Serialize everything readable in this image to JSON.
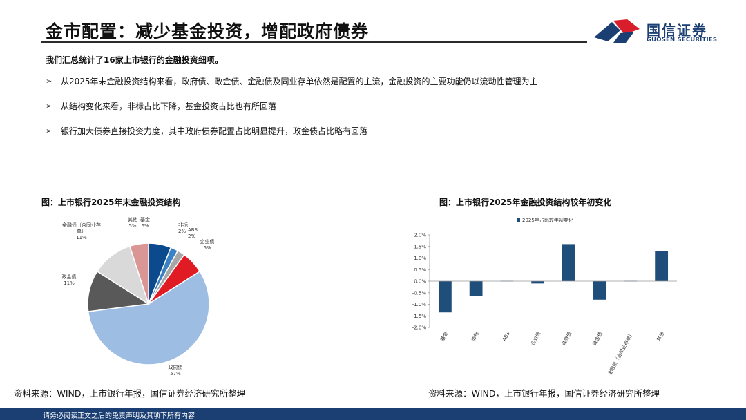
{
  "header": {
    "title": "金市配置：减少基金投资，增配政府债券",
    "logo_name": "国信证券",
    "logo_sub": "GUOSEN SECURITIES"
  },
  "intro": "我们汇总统计了16家上市银行的金融投资细项。",
  "bullets": [
    {
      "mark": "➢",
      "text": "从2025年末金融投资结构来看，政府债、政金债、金融债及同业存单依然是配置的主流，金融投资的主要功能仍以流动性管理为主"
    },
    {
      "mark": "➢",
      "text": "从结构变化来看，非标占比下降，基金投资占比也有所回落"
    },
    {
      "mark": "➢",
      "text": "银行加大债券直接投资力度，其中政府债券配置占比明显提升，政金债占比略有回落"
    }
  ],
  "colors": {
    "brand_blue": "#1b3f73",
    "brand_red": "#d81e2a",
    "bar": "#1f4e7a"
  },
  "chart_data": [
    {
      "type": "pie",
      "caption": "图：上市银行2025年末金融投资结构",
      "slices": [
        {
          "label": "基金",
          "value": 6,
          "display": "6%",
          "color": "#0b4a8c"
        },
        {
          "label": "非标",
          "value": 2,
          "display": "2%",
          "color": "#3a82c4"
        },
        {
          "label": "ABS",
          "value": 2,
          "display": "2%",
          "color": "#a7a7a7"
        },
        {
          "label": "企业债",
          "value": 6,
          "display": "6%",
          "color": "#e01b24"
        },
        {
          "label": "政府债",
          "value": 57,
          "display": "57%",
          "color": "#9dbde3"
        },
        {
          "label": "政金债",
          "value": 11,
          "display": "11%",
          "color": "#595959"
        },
        {
          "label": "金融债（含同业存单）",
          "value": 11,
          "display": "11%",
          "color": "#d9d9d9"
        },
        {
          "label": "其他",
          "value": 5,
          "display": "5%",
          "color": "#d99694"
        }
      ]
    },
    {
      "type": "bar",
      "caption": "图：上市银行2025年金融投资结构较年初变化",
      "legend": "2025年占比较年初变化",
      "legend_position": "top",
      "categories": [
        "基金",
        "非标",
        "ABS",
        "企业债",
        "政府债",
        "政金债",
        "金融债（含同业存单）",
        "其他"
      ],
      "values": [
        -1.35,
        -0.65,
        0.0,
        -0.1,
        1.6,
        -0.8,
        0.0,
        1.3
      ],
      "ylim": [
        -2.0,
        2.0
      ],
      "yticks": [
        "2.0%",
        "1.5%",
        "1.0%",
        "0.5%",
        "0.0%",
        "-0.5%",
        "-1.0%",
        "-1.5%",
        "-2.0%"
      ],
      "ytick_values": [
        2.0,
        1.5,
        1.0,
        0.5,
        0.0,
        -0.5,
        -1.0,
        -1.5,
        -2.0
      ]
    }
  ],
  "sources": {
    "left": "资料来源：WIND，上市银行年报，国信证券经济研究所整理",
    "right": "资料来源：WIND，上市银行年报，国信证券经济研究所整理"
  },
  "footer": "请务必阅读正文之后的免责声明及其项下所有内容"
}
